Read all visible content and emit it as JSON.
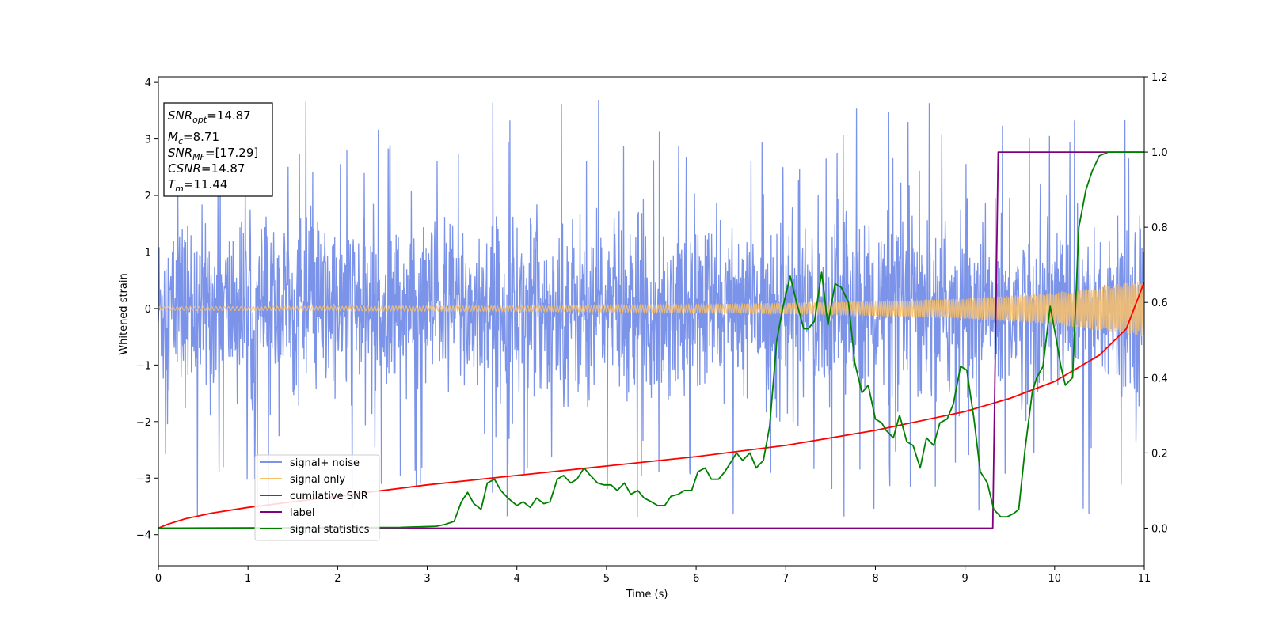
{
  "chart_data": {
    "type": "line",
    "xlabel": "Time (s)",
    "ylabel_left": "Whitened strain",
    "ylabel_right": "",
    "xlim": [
      0,
      11
    ],
    "ylim_left": [
      -4.55,
      4.1
    ],
    "ylim_right": [
      -0.1,
      1.2
    ],
    "xticks": [
      "0",
      "1",
      "2",
      "3",
      "4",
      "5",
      "6",
      "7",
      "8",
      "9",
      "10",
      "11"
    ],
    "yticks_left": [
      "−4",
      "−3",
      "−2",
      "−1",
      "0",
      "1",
      "2",
      "3",
      "4"
    ],
    "yticks_right": [
      "0.0",
      "0.2",
      "0.4",
      "0.6",
      "0.8",
      "1.0",
      "1.2"
    ],
    "grid": false,
    "legend_position": "lower-left",
    "info_box": {
      "lines": [
        {
          "sym": "SNR",
          "sub": "opt",
          "value": "=14.87"
        },
        {
          "sym": "M",
          "sub": "c",
          "value": "=8.71"
        },
        {
          "sym": "SNR",
          "sub": "MF",
          "value": "=[17.29]"
        },
        {
          "sym": "CSNR",
          "sub": "",
          "value": "=14.87"
        },
        {
          "sym": "T",
          "sub": "m",
          "value": "=11.44"
        }
      ]
    },
    "series": [
      {
        "name": "signal+ noise",
        "color": "#7b93e8",
        "axis": "left",
        "kind": "noise",
        "envelope": {
          "x": [
            0,
            11
          ],
          "ymax_typical": 2.4,
          "ymin_typical": -2.4,
          "peak_max": 3.7,
          "peak_min": -3.8
        }
      },
      {
        "name": "signal only",
        "color": "#f9c06a",
        "axis": "left",
        "kind": "chirp",
        "amplitude": {
          "x": [
            0,
            2,
            4,
            6,
            8,
            9,
            10,
            11
          ],
          "y": [
            0.03,
            0.04,
            0.05,
            0.07,
            0.13,
            0.18,
            0.28,
            0.5
          ]
        }
      },
      {
        "name": "cumilative SNR",
        "color": "#ff0000",
        "axis": "right",
        "x": [
          0,
          0.1,
          0.3,
          0.6,
          1,
          2,
          3,
          4,
          5,
          6,
          7,
          8,
          9,
          9.5,
          10,
          10.5,
          10.8,
          11
        ],
        "y": [
          0.0,
          0.01,
          0.025,
          0.04,
          0.055,
          0.085,
          0.115,
          0.14,
          0.165,
          0.19,
          0.22,
          0.26,
          0.31,
          0.345,
          0.39,
          0.46,
          0.53,
          0.655
        ]
      },
      {
        "name": "label",
        "color": "#800080",
        "axis": "right",
        "x": [
          0,
          9.31,
          9.37,
          11
        ],
        "y": [
          0,
          0,
          1,
          1
        ]
      },
      {
        "name": "signal statistics",
        "color": "#008000",
        "axis": "right",
        "x": [
          0,
          2.7,
          3.1,
          3.2,
          3.3,
          3.38,
          3.45,
          3.52,
          3.6,
          3.67,
          3.75,
          3.82,
          3.9,
          4.0,
          4.07,
          4.15,
          4.22,
          4.3,
          4.37,
          4.45,
          4.52,
          4.6,
          4.67,
          4.75,
          4.82,
          4.9,
          4.97,
          5.05,
          5.12,
          5.2,
          5.27,
          5.35,
          5.42,
          5.5,
          5.57,
          5.65,
          5.72,
          5.8,
          5.87,
          5.95,
          6.02,
          6.1,
          6.17,
          6.25,
          6.32,
          6.4,
          6.45,
          6.52,
          6.6,
          6.67,
          6.75,
          6.82,
          6.9,
          6.97,
          7.05,
          7.12,
          7.2,
          7.25,
          7.32,
          7.4,
          7.47,
          7.55,
          7.62,
          7.7,
          7.77,
          7.85,
          7.92,
          8.0,
          8.07,
          8.12,
          8.2,
          8.27,
          8.35,
          8.42,
          8.5,
          8.57,
          8.65,
          8.72,
          8.8,
          8.87,
          8.95,
          9.02,
          9.1,
          9.17,
          9.25,
          9.32,
          9.4,
          9.47,
          9.55,
          9.6,
          9.67,
          9.75,
          9.8,
          9.87,
          9.95,
          10.02,
          10.07,
          10.12,
          10.2,
          10.27,
          10.35,
          10.42,
          10.5,
          10.6,
          10.8,
          11
        ],
        "y": [
          0.0,
          0.002,
          0.005,
          0.01,
          0.018,
          0.07,
          0.095,
          0.065,
          0.05,
          0.12,
          0.13,
          0.1,
          0.08,
          0.06,
          0.07,
          0.055,
          0.08,
          0.065,
          0.07,
          0.13,
          0.14,
          0.12,
          0.13,
          0.16,
          0.14,
          0.12,
          0.115,
          0.115,
          0.1,
          0.12,
          0.09,
          0.1,
          0.08,
          0.07,
          0.06,
          0.06,
          0.085,
          0.09,
          0.1,
          0.1,
          0.15,
          0.16,
          0.13,
          0.13,
          0.15,
          0.18,
          0.2,
          0.18,
          0.2,
          0.16,
          0.18,
          0.27,
          0.5,
          0.59,
          0.67,
          0.6,
          0.53,
          0.53,
          0.55,
          0.68,
          0.54,
          0.65,
          0.64,
          0.6,
          0.44,
          0.36,
          0.38,
          0.29,
          0.28,
          0.26,
          0.24,
          0.3,
          0.23,
          0.22,
          0.16,
          0.24,
          0.22,
          0.28,
          0.29,
          0.33,
          0.43,
          0.42,
          0.29,
          0.15,
          0.12,
          0.05,
          0.03,
          0.03,
          0.04,
          0.05,
          0.21,
          0.36,
          0.4,
          0.43,
          0.59,
          0.5,
          0.43,
          0.38,
          0.4,
          0.8,
          0.9,
          0.95,
          0.99,
          1.0,
          1.0,
          1.0
        ]
      }
    ]
  }
}
